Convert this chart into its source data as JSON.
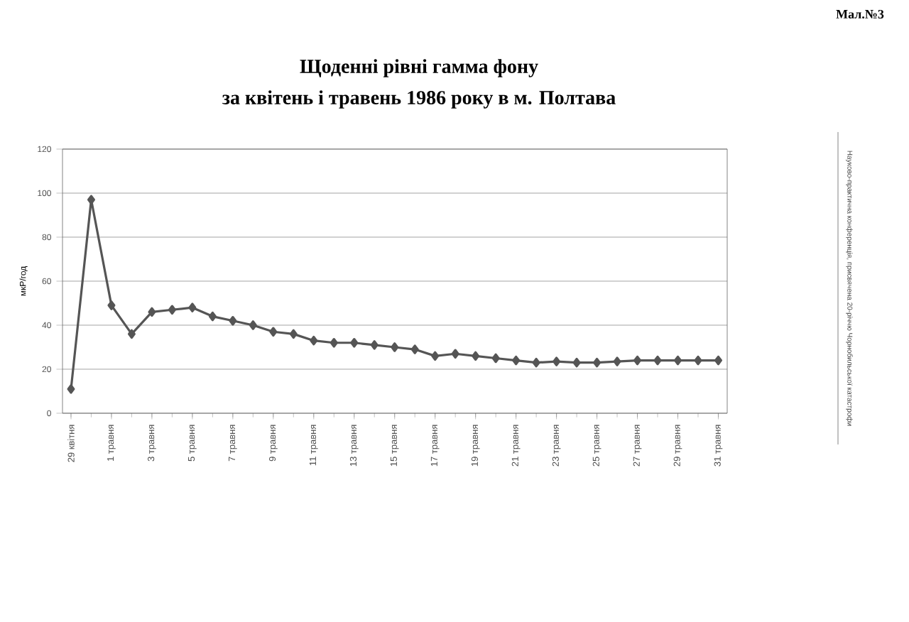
{
  "chart_data": {
    "type": "line",
    "title": "Щоденні  рівні гамма фону",
    "subtitle": "за  квітень і травень 1986 року в м. Полтава",
    "ylabel": "мкР/год",
    "categories": [
      "29 квітня",
      null,
      "1 травня",
      null,
      "3 травня",
      null,
      "5 травня",
      null,
      "7 травня",
      null,
      "9 травня",
      null,
      "11 травня",
      null,
      "13 травня",
      null,
      "15 травня",
      null,
      "17 травня",
      null,
      "19 травня",
      null,
      "21 травня",
      null,
      "23 травня",
      null,
      "25 травня",
      null,
      "27 травня",
      null,
      "29 травня",
      null,
      "31 травня"
    ],
    "series": [
      {
        "color": "#555555",
        "values": [
          11,
          97,
          49,
          36,
          46,
          47,
          48,
          44,
          42,
          40,
          37,
          36,
          33,
          32,
          32,
          31,
          30,
          29,
          26,
          27,
          26,
          25,
          24,
          23,
          23.5,
          23,
          23,
          23.5,
          24,
          24,
          24,
          24,
          24
        ]
      }
    ],
    "ylim": [
      0,
      120
    ],
    "yticks": [
      0,
      20,
      40,
      60,
      80,
      100,
      120
    ],
    "grid": "y",
    "marker": "diamond",
    "line_style": "solid",
    "annotations": [
      "Мал.№3",
      "Науково-практична конференція, присвячена 20-річчю Чорнобильської катастрофи"
    ]
  }
}
